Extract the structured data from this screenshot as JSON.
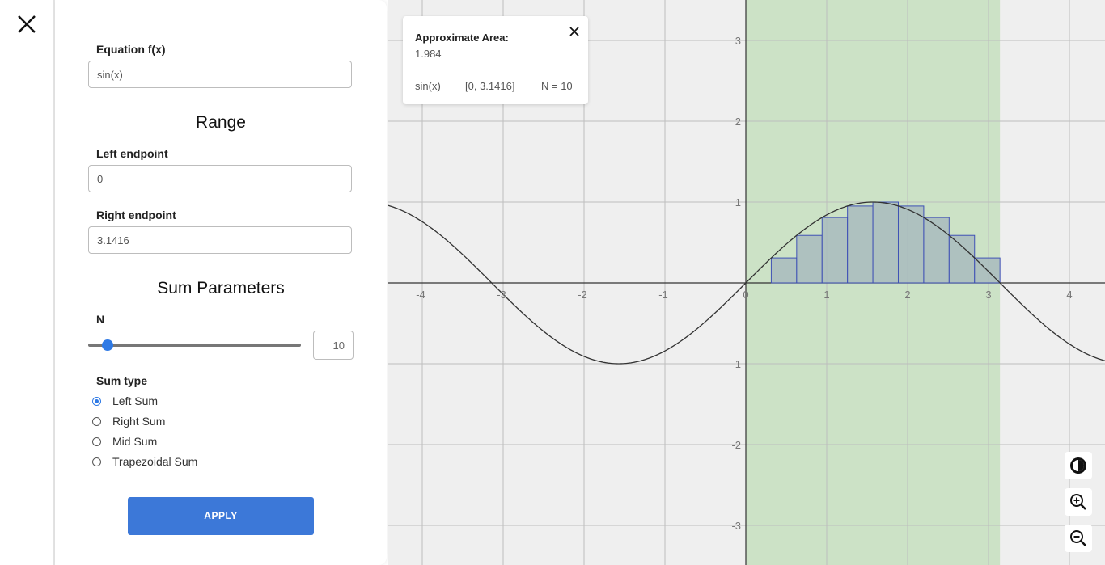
{
  "panel": {
    "equation_label": "Equation f(x)",
    "equation_value": "sin(x)",
    "range_title": "Range",
    "left_label": "Left endpoint",
    "left_value": "0",
    "right_label": "Right endpoint",
    "right_value": "3.1416",
    "params_title": "Sum Parameters",
    "n_label": "N",
    "n_value": "10",
    "n_slider_fraction": 0.09,
    "sum_type_label": "Sum type",
    "sum_types": [
      {
        "label": "Left Sum",
        "checked": true
      },
      {
        "label": "Right Sum",
        "checked": false
      },
      {
        "label": "Mid Sum",
        "checked": false
      },
      {
        "label": "Trapezoidal Sum",
        "checked": false
      }
    ],
    "apply_label": "APPLY"
  },
  "info_card": {
    "title": "Approximate Area:",
    "value": "1.984",
    "function": "sin(x)",
    "interval": "[0, 3.1416]",
    "n": "N = 10"
  },
  "graph": {
    "x_ticks": [
      "-4",
      "-3",
      "-2",
      "-1",
      "0",
      "1",
      "2",
      "3",
      "4"
    ],
    "y_ticks": [
      "3",
      "2",
      "1",
      "-1",
      "-2",
      "-3"
    ],
    "highlight_color": "#cce2c6",
    "bar_fill": "#a8bbbd",
    "bar_stroke": "#3f51b5",
    "curve_color": "#333333"
  },
  "tools": [
    "contrast-icon",
    "zoom-in-icon",
    "zoom-out-icon"
  ]
}
